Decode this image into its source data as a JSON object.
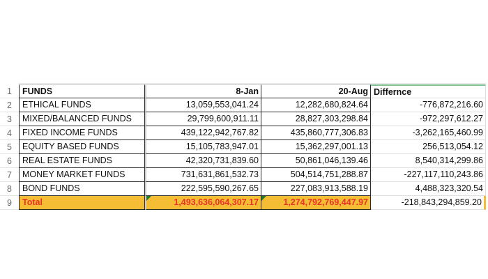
{
  "spreadsheet": {
    "columns": [
      "FUNDS",
      "8-Jan",
      "20-Aug",
      "Differnce"
    ],
    "rows": [
      {
        "num": "1",
        "fund": "FUNDS",
        "jan": "8-Jan",
        "aug": "20-Aug",
        "diff": "Differnce"
      },
      {
        "num": "2",
        "fund": "ETHICAL FUNDS",
        "jan": "13,059,553,041.24",
        "aug": "12,282,680,824.64",
        "diff": "-776,872,216.60"
      },
      {
        "num": "3",
        "fund": "MIXED/BALANCED FUNDS",
        "jan": "29,799,600,911.11",
        "aug": "28,827,303,298.84",
        "diff": "-972,297,612.27"
      },
      {
        "num": "4",
        "fund": "FIXED INCOME FUNDS",
        "jan": "439,122,942,767.82",
        "aug": "435,860,777,306.83",
        "diff": "-3,262,165,460.99"
      },
      {
        "num": "5",
        "fund": "EQUITY BASED FUNDS",
        "jan": "15,105,783,947.01",
        "aug": "15,362,297,001.13",
        "diff": "256,513,054.12"
      },
      {
        "num": "6",
        "fund": "REAL ESTATE FUNDS",
        "jan": "42,320,731,839.60",
        "aug": "50,861,046,139.46",
        "diff": "8,540,314,299.86"
      },
      {
        "num": "7",
        "fund": "MONEY MARKET FUNDS",
        "jan": "731,631,861,532.73",
        "aug": "504,514,751,288.87",
        "diff": "-227,117,110,243.86"
      },
      {
        "num": "8",
        "fund": "BOND FUNDS",
        "jan": "222,595,590,267.65",
        "aug": "227,083,913,588.19",
        "diff": "4,488,323,320.54"
      },
      {
        "num": "9",
        "fund": "Total",
        "jan": "1,493,636,064,307.17",
        "aug": "1,274,792,769,447.97",
        "diff": "-218,843,294,859.20"
      }
    ],
    "colors": {
      "total_fill": "#f4bd33",
      "total_text": "#e8342a",
      "selection_border": "#7fbf8f",
      "error_flag": "#1f7a2c"
    }
  }
}
